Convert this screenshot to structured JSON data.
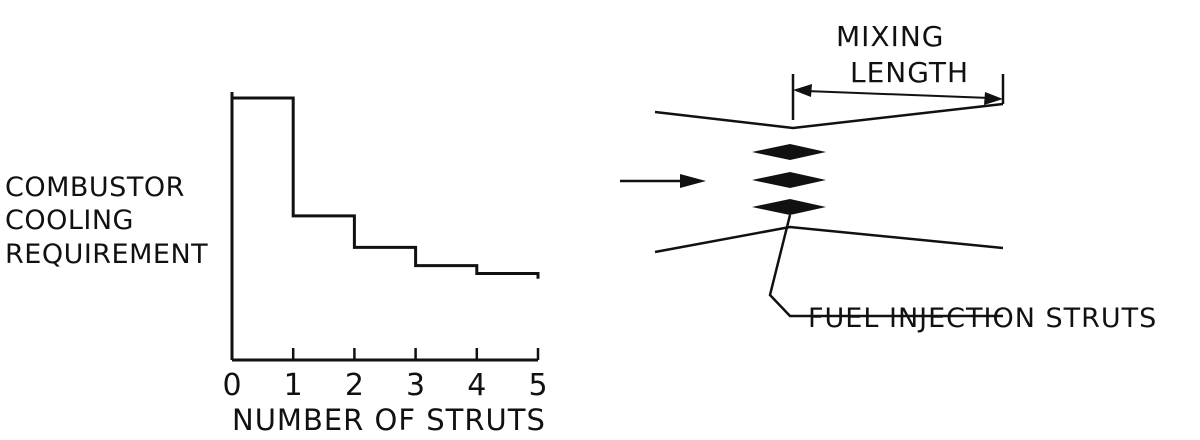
{
  "chart_data": {
    "type": "step",
    "x": [
      0,
      1,
      2,
      3,
      4,
      5
    ],
    "values": [
      1.0,
      0.55,
      0.43,
      0.36,
      0.33,
      0.31
    ],
    "ylabel_lines": [
      "COMBUSTOR",
      "COOLING",
      "REQUIREMENT"
    ],
    "xlabel": "NUMBER OF STRUTS",
    "xticks": [
      "0",
      "1",
      "2",
      "3",
      "4",
      "5"
    ],
    "xlim": [
      0,
      5
    ],
    "ylim": [
      0,
      1
    ],
    "grid": false
  },
  "diagram": {
    "mixing_label_lines": [
      "MIXING",
      "LENGTH"
    ],
    "strut_label": "FUEL INJECTION STRUTS"
  }
}
